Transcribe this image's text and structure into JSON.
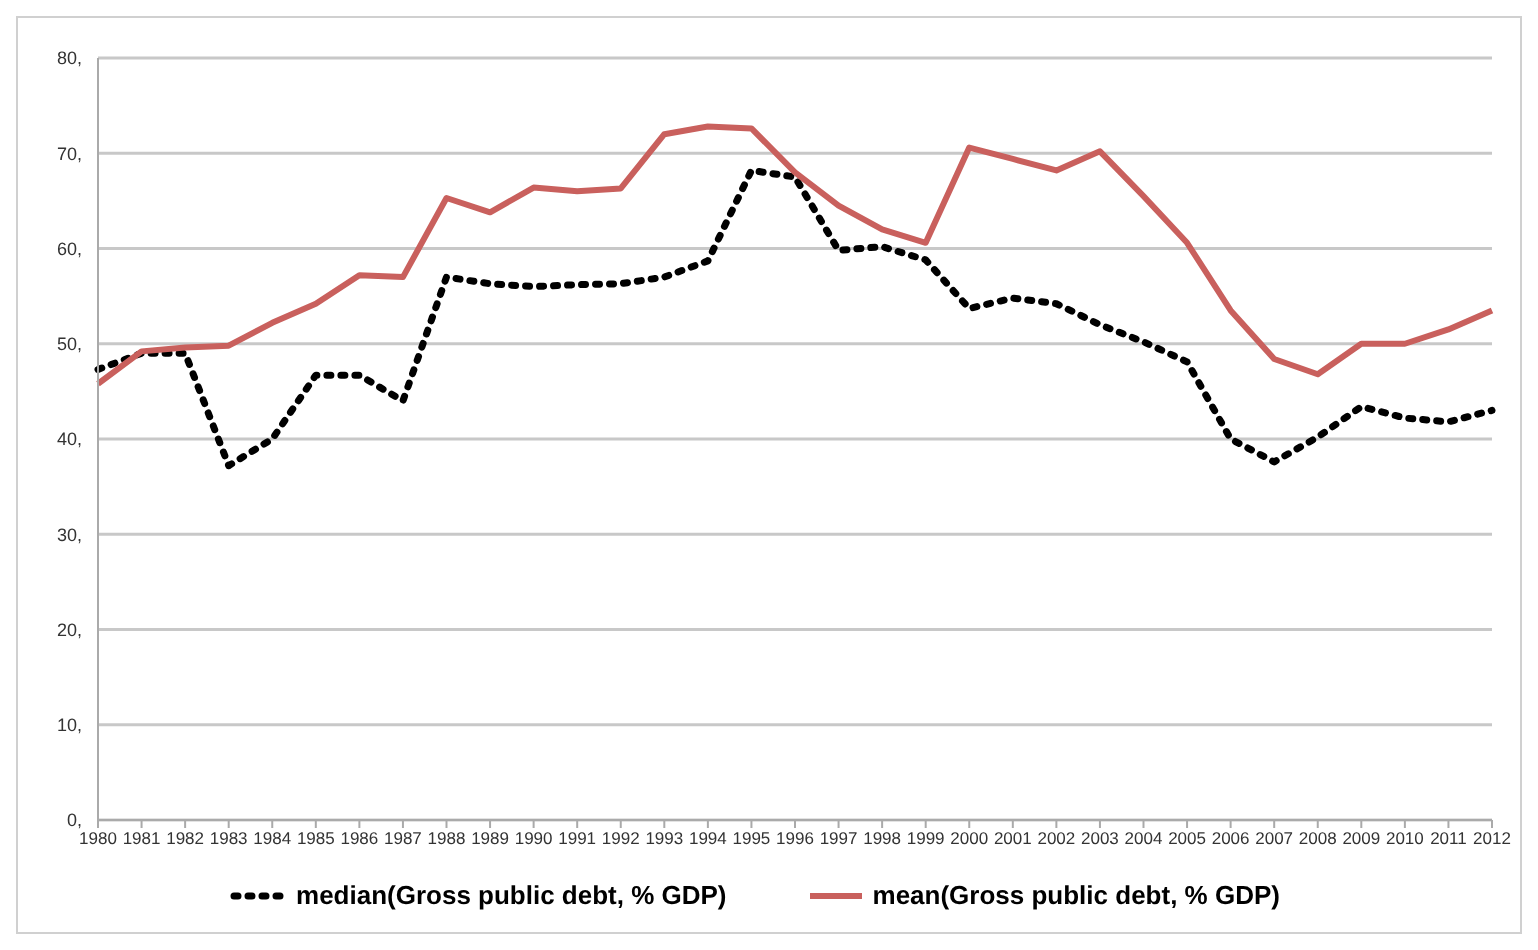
{
  "chart_data": {
    "type": "line",
    "categories": [
      "1980",
      "1981",
      "1982",
      "1983",
      "1984",
      "1985",
      "1986",
      "1987",
      "1988",
      "1989",
      "1990",
      "1991",
      "1992",
      "1993",
      "1994",
      "1995",
      "1996",
      "1997",
      "1998",
      "1999",
      "2000",
      "2001",
      "2002",
      "2003",
      "2004",
      "2005",
      "2006",
      "2007",
      "2008",
      "2009",
      "2010",
      "2011",
      "2012"
    ],
    "series": [
      {
        "name": "median(Gross public debt, % GDP)",
        "color": "#000000",
        "line_style": "dotted",
        "values": [
          47.3,
          49,
          49,
          37.2,
          40,
          46.7,
          46.7,
          44,
          57,
          56.3,
          56,
          56.2,
          56.3,
          57,
          58.7,
          68.2,
          67.5,
          59.8,
          60.2,
          58.8,
          53.7,
          54.8,
          54.2,
          52,
          50.2,
          48.1,
          40,
          37.6,
          40.2,
          43.4,
          42.2,
          41.8,
          43
        ]
      },
      {
        "name": "mean(Gross public debt, % GDP)",
        "color": "#c9605d",
        "line_style": "solid",
        "values": [
          45.8,
          49.2,
          49.6,
          49.8,
          52.2,
          54.2,
          57.2,
          57,
          65.3,
          63.8,
          66.4,
          66,
          66.3,
          72,
          72.8,
          72.6,
          68,
          64.5,
          62,
          60.6,
          70.6,
          69.4,
          68.2,
          70.2,
          65.5,
          60.6,
          53.5,
          48.4,
          46.8,
          50,
          50,
          51.5,
          53.5
        ]
      }
    ],
    "ylim": [
      0,
      80
    ],
    "yticks": [
      {
        "value": 0,
        "label": "0,"
      },
      {
        "value": 10,
        "label": "10,"
      },
      {
        "value": 20,
        "label": "20,"
      },
      {
        "value": 30,
        "label": "30,"
      },
      {
        "value": 40,
        "label": "40,"
      },
      {
        "value": 50,
        "label": "50,"
      },
      {
        "value": 60,
        "label": "60,"
      },
      {
        "value": 70,
        "label": "70,"
      },
      {
        "value": 80,
        "label": "80,"
      }
    ],
    "grid": "y",
    "legend": "bottom",
    "marker": "none"
  }
}
